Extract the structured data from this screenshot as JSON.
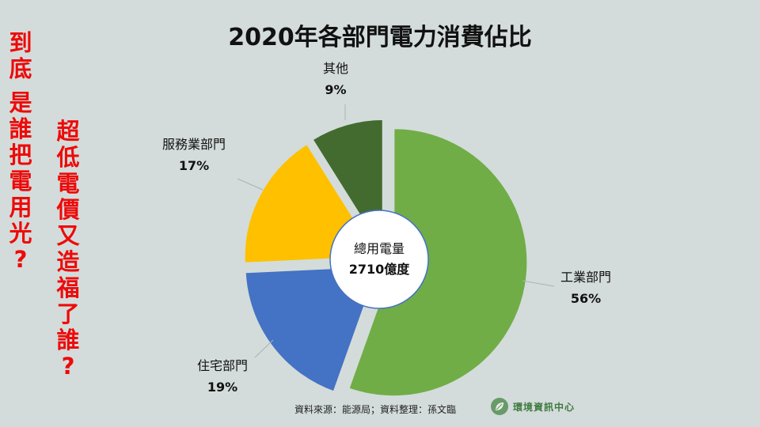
{
  "slide": {
    "side_text_1": "到底 是誰把電用光?",
    "side_text_2": "超低電價又造福了誰?",
    "source": "資料來源：能源局；資料整理：孫文臨",
    "brand_name": "環境資訊中心",
    "brand_icon": "leaf-icon"
  },
  "chart_data": {
    "type": "pie",
    "title": "2020年各部門電力消費佔比",
    "center_label": [
      "總用電量",
      "2710億度"
    ],
    "categories": [
      "工業部門",
      "住宅部門",
      "服務業部門",
      "其他"
    ],
    "values": [
      56,
      19,
      17,
      9
    ],
    "value_labels": [
      "56%",
      "19%",
      "17%",
      "9%"
    ],
    "colors": [
      "#70ad47",
      "#4472c4",
      "#ffc000",
      "#436b2f"
    ],
    "donut": true,
    "exploded": true,
    "legend": "none"
  }
}
